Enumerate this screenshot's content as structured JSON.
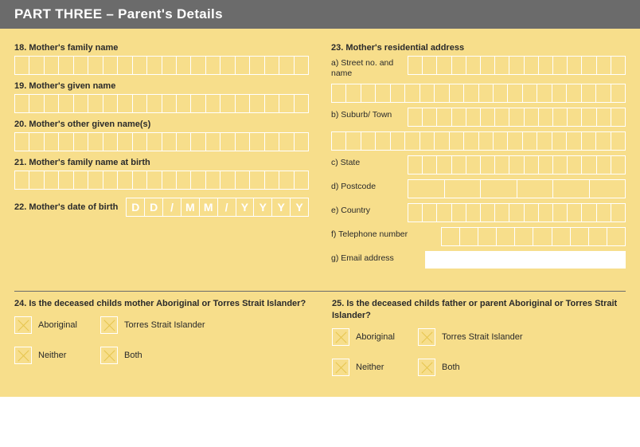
{
  "header": {
    "title": "PART THREE – Parent's Details"
  },
  "left": {
    "q18": {
      "label": "18. Mother's family name",
      "cells": 20
    },
    "q19": {
      "label": "19. Mother's given name",
      "cells": 20
    },
    "q20": {
      "label": "20. Mother's other given name(s)",
      "cells": 20
    },
    "q21": {
      "label": "21. Mother's family name at birth",
      "cells": 20
    },
    "q22": {
      "label": "22. Mother's date of birth",
      "hint": [
        "D",
        "D",
        "/",
        "M",
        "M",
        "/",
        "Y",
        "Y",
        "Y",
        "Y"
      ]
    }
  },
  "right": {
    "q23": {
      "label": "23. Mother's residential address",
      "a": {
        "label": "a) Street no. and name",
        "row1": 15,
        "row2": 20
      },
      "b": {
        "label": "b) Suburb/ Town",
        "row1": 15,
        "row2": 20
      },
      "c": {
        "label": "c) State",
        "cells": 15
      },
      "d": {
        "label": "d) Postcode",
        "cells": 6
      },
      "e": {
        "label": "e) Country",
        "cells": 15
      },
      "f": {
        "label": "f) Telephone number",
        "cells": 10
      },
      "g": {
        "label": "g) Email address"
      }
    }
  },
  "q24": {
    "label": "24. Is the deceased childs mother Aboriginal or Torres Strait Islander?",
    "opts": [
      "Aboriginal",
      "Torres Strait Islander",
      "Neither",
      "Both"
    ]
  },
  "q25": {
    "label": "25. Is the deceased childs father or parent Aboriginal or Torres Strait Islander?",
    "opts": [
      "Aboriginal",
      "Torres Strait Islander",
      "Neither",
      "Both"
    ]
  },
  "style": {
    "page_bg": "#f7de8b",
    "header_bg": "#6b6b6b",
    "header_fg": "#ffffff",
    "cell_border": "#ffffff",
    "hint_fg": "#ffffff",
    "x_color": "#e6c44f",
    "rule_color": "#6b6b6b"
  }
}
